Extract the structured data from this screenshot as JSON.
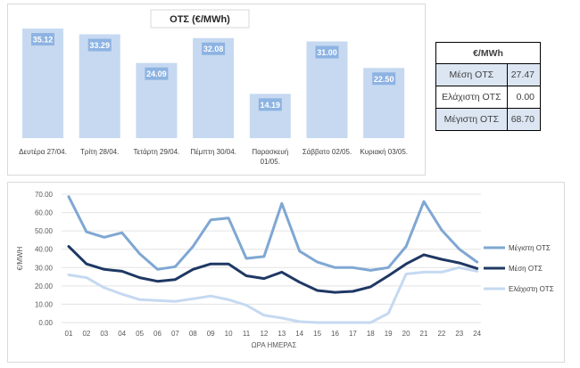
{
  "chart_data": [
    {
      "type": "bar",
      "title": "ΟΤΣ (€/MWh)",
      "categories": [
        "Δευτέρα 27/04.",
        "Τρίτη 28/04.",
        "Τετάρτη 29/04.",
        "Πέμπτη 30/04.",
        "Παρασκευή 01/05.",
        "Σάββατο 02/05.",
        "Κυριακή 03/05."
      ],
      "category_lines": [
        [
          "Δευτέρα 27/04."
        ],
        [
          "Τρίτη 28/04."
        ],
        [
          "Τετάρτη 29/04."
        ],
        [
          "Πέμπτη 30/04."
        ],
        [
          "Παρασκευή",
          "01/05."
        ],
        [
          "Σάββατο 02/05."
        ],
        [
          "Κυριακή 03/05."
        ]
      ],
      "values": [
        35.12,
        33.29,
        24.09,
        32.08,
        14.19,
        31.0,
        22.5
      ],
      "value_labels": [
        "35.12",
        "33.29",
        "24.09",
        "32.08",
        "14.19",
        "31.00",
        "22.50"
      ],
      "ylim": [
        0,
        40
      ],
      "grid": false,
      "colors": {
        "bar": "#c6d9f1",
        "label_box": "#8db3e2",
        "label_text": "#ffffff",
        "title_box": "#ffffff"
      }
    },
    {
      "type": "line",
      "xlabel": "ΩΡΑ ΗΜΕΡΑΣ",
      "ylabel": "€/MWH",
      "x": [
        "01",
        "02",
        "03",
        "04",
        "05",
        "06",
        "07",
        "08",
        "09",
        "10",
        "11",
        "12",
        "13",
        "14",
        "15",
        "16",
        "17",
        "18",
        "19",
        "20",
        "21",
        "22",
        "23",
        "24"
      ],
      "ylim": [
        0,
        70
      ],
      "yticks": [
        "0.00",
        "10.00",
        "20.00",
        "30.00",
        "40.00",
        "50.00",
        "60.00",
        "70.00"
      ],
      "grid": true,
      "legend_position": "right",
      "series": [
        {
          "name": "Μέγιστη ΟΤΣ",
          "color": "#7fa7d3",
          "values": [
            68.7,
            49.5,
            46.5,
            49,
            37.5,
            29,
            30.5,
            41.5,
            56,
            57,
            35,
            36,
            65,
            39,
            33,
            30,
            30,
            28.5,
            30,
            41.5,
            66,
            50.5,
            40,
            33
          ]
        },
        {
          "name": "Μέση ΟΤΣ",
          "color": "#1f3864",
          "values": [
            41.5,
            32,
            29,
            28,
            24.5,
            22.5,
            23.5,
            29,
            32,
            32,
            25.5,
            24,
            27.5,
            22,
            17.5,
            16.5,
            17,
            19.5,
            25.5,
            32,
            37,
            34.5,
            32.5,
            29.5
          ]
        },
        {
          "name": "Ελάχιστη ΟΤΣ",
          "color": "#c5d9f1",
          "values": [
            26,
            24.5,
            19,
            15.5,
            12.5,
            12,
            11.5,
            13,
            14.5,
            12.5,
            9.5,
            4,
            2.5,
            0.5,
            0,
            0,
            0,
            0,
            5,
            26.5,
            27.5,
            27.5,
            30,
            28
          ]
        }
      ]
    }
  ],
  "summary_table": {
    "header": "€/MWh",
    "rows": [
      {
        "label": "Μέση ΟΤΣ",
        "value": "27.47"
      },
      {
        "label": "Ελάχιστη ΟΤΣ",
        "value": "0.00"
      },
      {
        "label": "Μέγιστη ΟΤΣ",
        "value": "68.70"
      }
    ]
  }
}
